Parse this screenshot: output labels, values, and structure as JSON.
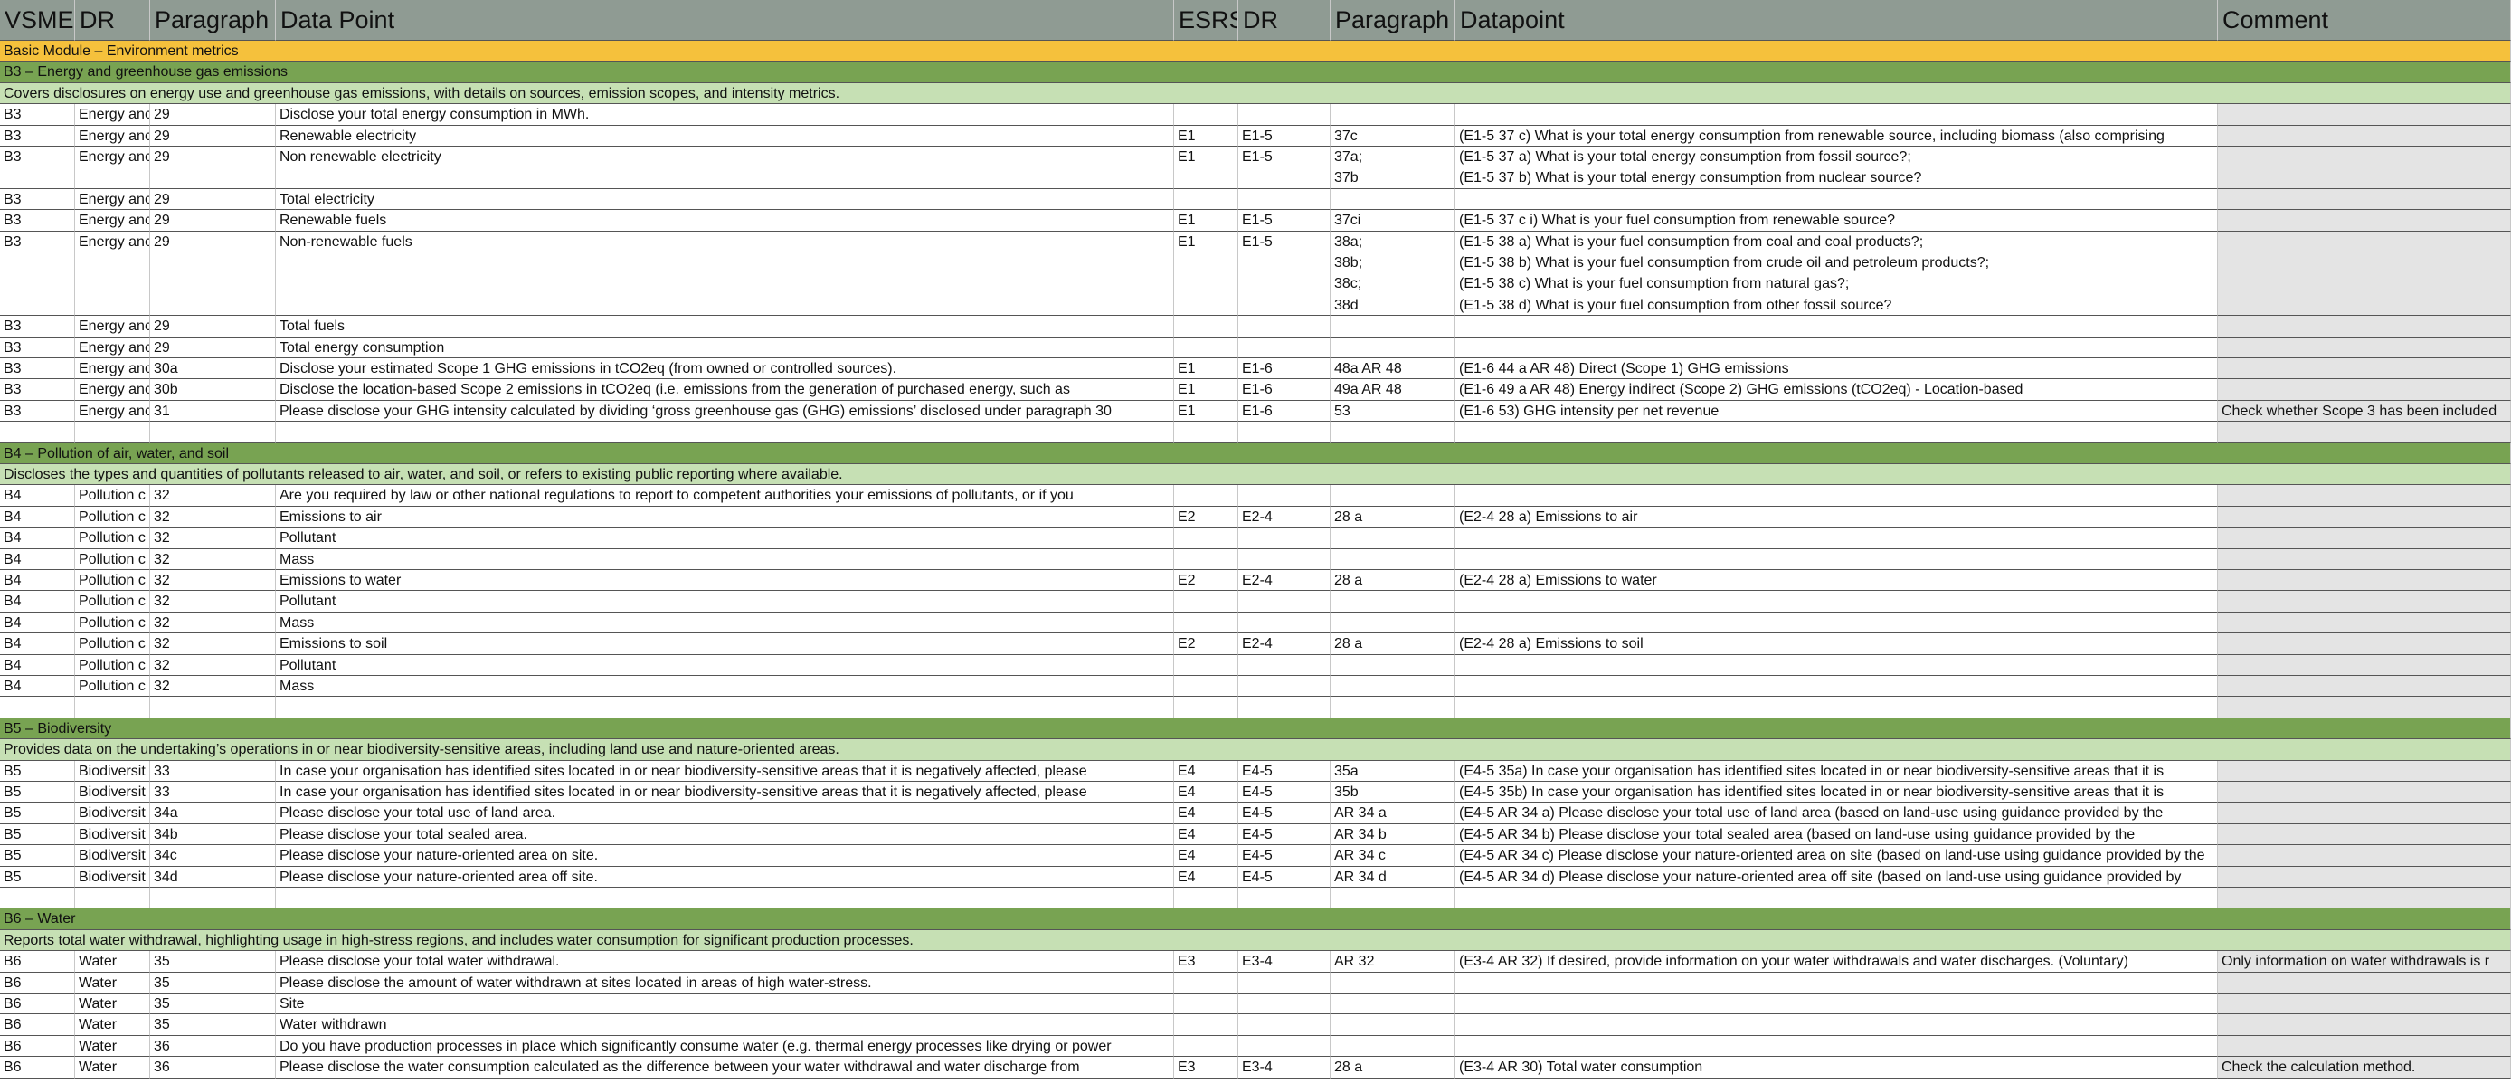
{
  "header": {
    "left": [
      "VSME",
      "DR",
      "Paragraph",
      "Data Point"
    ],
    "right": [
      "ESRS",
      "DR",
      "Paragraph",
      "Datapoint",
      "Comment"
    ]
  },
  "module": "Basic Module – Environment metrics",
  "sections": [
    {
      "title": "B3 – Energy and greenhouse gas emissions",
      "description": "Covers disclosures on energy use and greenhouse gas emissions, with details on sources, emission scopes, and intensity metrics.",
      "rows": [
        {
          "vsme": "B3",
          "dr": "Energy anc",
          "paragraph": "29",
          "data_point": "Disclose your total energy consumption in MWh."
        },
        {
          "vsme": "B3",
          "dr": "Energy anc",
          "paragraph": "29",
          "data_point": "Renewable electricity",
          "esrs": "E1",
          "esrs_dr": "E1-5",
          "esrs_paragraph": [
            "37c"
          ],
          "datapoint": [
            "(E1-5 37 c) What is your total energy consumption from renewable source, including biomass (also comprising"
          ]
        },
        {
          "vsme": "B3",
          "dr": "Energy anc",
          "paragraph": "29",
          "data_point": "Non renewable electricity",
          "esrs": "E1",
          "esrs_dr": "E1-5",
          "esrs_paragraph": [
            "37a;",
            "37b"
          ],
          "datapoint": [
            "(E1-5 37 a) What is your total energy consumption from fossil source?;",
            "(E1-5 37 b) What is your total energy consumption from nuclear source?"
          ]
        },
        {
          "vsme": "B3",
          "dr": "Energy anc",
          "paragraph": "29",
          "data_point": "Total electricity"
        },
        {
          "vsme": "B3",
          "dr": "Energy anc",
          "paragraph": "29",
          "data_point": "Renewable fuels",
          "esrs": "E1",
          "esrs_dr": "E1-5",
          "esrs_paragraph": [
            "37ci"
          ],
          "datapoint": [
            "(E1-5 37 c i) What is your fuel consumption from renewable source?"
          ]
        },
        {
          "vsme": "B3",
          "dr": "Energy anc",
          "paragraph": "29",
          "data_point": "Non-renewable fuels",
          "esrs": "E1",
          "esrs_dr": "E1-5",
          "esrs_paragraph": [
            "38a;",
            "38b;",
            "38c;",
            "38d"
          ],
          "datapoint": [
            "(E1-5 38 a) What is your fuel consumption from coal and coal products?;",
            "(E1-5 38 b) What is your fuel consumption from crude oil and petroleum products?;",
            "(E1-5 38 c) What is your fuel consumption from natural gas?;",
            "(E1-5 38 d) What is your fuel consumption from other fossil source?"
          ]
        },
        {
          "vsme": "B3",
          "dr": "Energy anc",
          "paragraph": "29",
          "data_point": "Total fuels"
        },
        {
          "vsme": "B3",
          "dr": "Energy anc",
          "paragraph": "29",
          "data_point": "Total energy consumption"
        },
        {
          "vsme": "B3",
          "dr": "Energy anc",
          "paragraph": "30a",
          "data_point": "Disclose your estimated Scope 1 GHG emissions in tCO2eq (from owned or controlled sources).",
          "esrs": "E1",
          "esrs_dr": "E1-6",
          "esrs_paragraph": [
            "48a AR 48"
          ],
          "datapoint": [
            "(E1-6 44 a AR 48) Direct (Scope 1) GHG emissions"
          ]
        },
        {
          "vsme": "B3",
          "dr": "Energy anc",
          "paragraph": "30b",
          "data_point": "Disclose the location-based Scope 2 emissions in tCO2eq (i.e. emissions from the generation of purchased energy, such as",
          "esrs": "E1",
          "esrs_dr": "E1-6",
          "esrs_paragraph": [
            "49a AR 48"
          ],
          "datapoint": [
            "(E1-6 49 a AR 48) Energy indirect (Scope 2) GHG emissions (tCO2eq) - Location-based"
          ]
        },
        {
          "vsme": "B3",
          "dr": "Energy anc",
          "paragraph": "31",
          "data_point": "Please disclose your GHG intensity calculated by dividing ‘gross greenhouse gas (GHG) emissions’ disclosed under paragraph 30",
          "esrs": "E1",
          "esrs_dr": "E1-6",
          "esrs_paragraph": [
            "53"
          ],
          "datapoint": [
            "(E1-6 53) GHG intensity per net revenue"
          ],
          "comment": "Check whether Scope 3 has been included"
        }
      ]
    },
    {
      "title": "B4 – Pollution of air, water, and soil",
      "description": "Discloses the types and quantities of pollutants released to air, water, and soil, or refers to existing public reporting where available.",
      "rows": [
        {
          "vsme": "B4",
          "dr": "Pollution c",
          "paragraph": "32",
          "data_point": "Are you required by law or other national regulations to report to competent authorities your emissions of pollutants, or if you"
        },
        {
          "vsme": "B4",
          "dr": "Pollution c",
          "paragraph": "32",
          "data_point": "Emissions to air",
          "esrs": "E2",
          "esrs_dr": "E2-4",
          "esrs_paragraph": [
            "28 a"
          ],
          "datapoint": [
            "(E2-4 28 a) Emissions to air"
          ]
        },
        {
          "vsme": "B4",
          "dr": "Pollution c",
          "paragraph": "32",
          "data_point": "Pollutant"
        },
        {
          "vsme": "B4",
          "dr": "Pollution c",
          "paragraph": "32",
          "data_point": "Mass"
        },
        {
          "vsme": "B4",
          "dr": "Pollution c",
          "paragraph": "32",
          "data_point": "Emissions to water",
          "esrs": "E2",
          "esrs_dr": "E2-4",
          "esrs_paragraph": [
            "28 a"
          ],
          "datapoint": [
            "(E2-4 28 a) Emissions to water"
          ]
        },
        {
          "vsme": "B4",
          "dr": "Pollution c",
          "paragraph": "32",
          "data_point": "Pollutant"
        },
        {
          "vsme": "B4",
          "dr": "Pollution c",
          "paragraph": "32",
          "data_point": "Mass"
        },
        {
          "vsme": "B4",
          "dr": "Pollution c",
          "paragraph": "32",
          "data_point": "Emissions to soil",
          "esrs": "E2",
          "esrs_dr": "E2-4",
          "esrs_paragraph": [
            "28 a"
          ],
          "datapoint": [
            "(E2-4 28 a) Emissions to soil"
          ]
        },
        {
          "vsme": "B4",
          "dr": "Pollution c",
          "paragraph": "32",
          "data_point": "Pollutant"
        },
        {
          "vsme": "B4",
          "dr": "Pollution c",
          "paragraph": "32",
          "data_point": "Mass"
        }
      ]
    },
    {
      "title": "B5 – Biodiversity",
      "description": "Provides data on the undertaking’s operations in or near biodiversity-sensitive areas, including land use and nature-oriented areas.",
      "rows": [
        {
          "vsme": "B5",
          "dr": "Biodiversit",
          "paragraph": "33",
          "data_point": "In case your organisation has identified sites located in or near biodiversity-sensitive areas that it is negatively affected, please",
          "esrs": "E4",
          "esrs_dr": "E4-5",
          "esrs_paragraph": [
            "35a"
          ],
          "datapoint": [
            "(E4-5 35a) In case your organisation has identified sites located in or near biodiversity-sensitive areas that it is"
          ]
        },
        {
          "vsme": "B5",
          "dr": "Biodiversit",
          "paragraph": "33",
          "data_point": "In case your organisation has identified sites located in or near biodiversity-sensitive areas that it is negatively affected, please",
          "esrs": "E4",
          "esrs_dr": "E4-5",
          "esrs_paragraph": [
            "35b"
          ],
          "datapoint": [
            "(E4-5 35b) In case your organisation has identified sites located in or near biodiversity-sensitive areas that it is"
          ]
        },
        {
          "vsme": "B5",
          "dr": "Biodiversit",
          "paragraph": "34a",
          "data_point": "Please disclose your total use of land area.",
          "esrs": "E4",
          "esrs_dr": "E4-5",
          "esrs_paragraph": [
            "AR 34 a"
          ],
          "datapoint": [
            "(E4-5 AR 34 a) Please disclose your total use of land area (based on land-use using guidance provided by the"
          ]
        },
        {
          "vsme": "B5",
          "dr": "Biodiversit",
          "paragraph": "34b",
          "data_point": "Please disclose your total sealed area.",
          "esrs": "E4",
          "esrs_dr": "E4-5",
          "esrs_paragraph": [
            "AR 34 b"
          ],
          "datapoint": [
            "(E4-5 AR 34 b) Please disclose your total sealed area (based on land-use using guidance provided by the"
          ]
        },
        {
          "vsme": "B5",
          "dr": "Biodiversit",
          "paragraph": "34c",
          "data_point": "Please disclose your nature-oriented area on site.",
          "esrs": "E4",
          "esrs_dr": "E4-5",
          "esrs_paragraph": [
            "AR 34 c"
          ],
          "datapoint": [
            "(E4-5 AR 34 c) Please disclose your nature-oriented area on site (based on land-use using guidance provided by the"
          ]
        },
        {
          "vsme": "B5",
          "dr": "Biodiversit",
          "paragraph": "34d",
          "data_point": "Please disclose your nature-oriented area off site.",
          "esrs": "E4",
          "esrs_dr": "E4-5",
          "esrs_paragraph": [
            "AR 34 d"
          ],
          "datapoint": [
            "(E4-5 AR 34 d) Please disclose your nature-oriented area off site (based on land-use using guidance provided by"
          ]
        }
      ]
    },
    {
      "title": "B6 – Water",
      "description": "Reports total water withdrawal, highlighting usage in high-stress regions, and includes water consumption for significant production processes.",
      "rows": [
        {
          "vsme": "B6",
          "dr": "Water",
          "paragraph": "35",
          "data_point": "Please disclose your total water withdrawal.",
          "esrs": "E3",
          "esrs_dr": "E3-4",
          "esrs_paragraph": [
            "AR 32"
          ],
          "datapoint": [
            "(E3-4 AR 32) If desired, provide information on your water withdrawals and water discharges. (Voluntary)"
          ],
          "comment": "Only information on water withdrawals is r"
        },
        {
          "vsme": "B6",
          "dr": "Water",
          "paragraph": "35",
          "data_point": "Please disclose the amount of water withdrawn at sites located in areas of high water-stress."
        },
        {
          "vsme": "B6",
          "dr": "Water",
          "paragraph": "35",
          "data_point": "Site"
        },
        {
          "vsme": "B6",
          "dr": "Water",
          "paragraph": "35",
          "data_point": "Water withdrawn"
        },
        {
          "vsme": "B6",
          "dr": "Water",
          "paragraph": "36",
          "data_point": "Do you have production processes in place which significantly consume water (e.g. thermal energy processes like drying or power"
        },
        {
          "vsme": "B6",
          "dr": "Water",
          "paragraph": "36",
          "data_point": "Please disclose the water consumption calculated as the difference between your water withdrawal and water discharge from",
          "esrs": "E3",
          "esrs_dr": "E3-4",
          "esrs_paragraph": [
            "28 a"
          ],
          "datapoint": [
            "(E3-4 AR 30) Total water consumption"
          ],
          "comment": "Check the calculation method."
        }
      ]
    }
  ]
}
